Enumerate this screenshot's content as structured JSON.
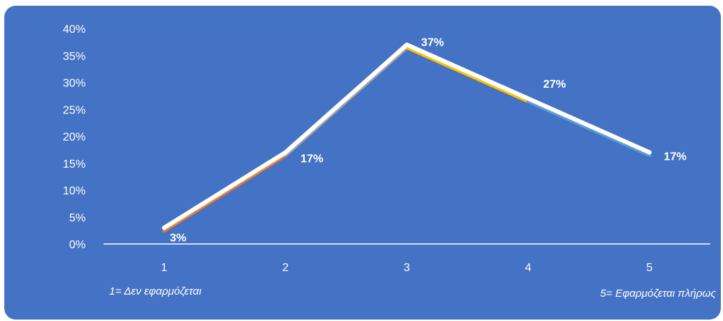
{
  "chart_data": {
    "type": "line",
    "categories": [
      "1",
      "2",
      "3",
      "4",
      "5"
    ],
    "values": [
      3,
      17,
      37,
      27,
      17
    ],
    "data_labels": [
      "3%",
      "17%",
      "37%",
      "27%",
      "17%"
    ],
    "segment_colors": [
      "#ed7d31",
      "#a5a5a5",
      "#ffc000",
      "#5b9bd5"
    ],
    "y_ticks": [
      "0%",
      "5%",
      "10%",
      "15%",
      "20%",
      "25%",
      "30%",
      "35%",
      "40%"
    ],
    "ylim": [
      0,
      40
    ],
    "drop_lines": true,
    "line_color": "#ffffff",
    "background": "#4472c4",
    "grid": false
  },
  "notes": {
    "left": "1= Δεν εφαρμόζεται",
    "right": "5= Εφαρμόζεται πλήρως"
  }
}
